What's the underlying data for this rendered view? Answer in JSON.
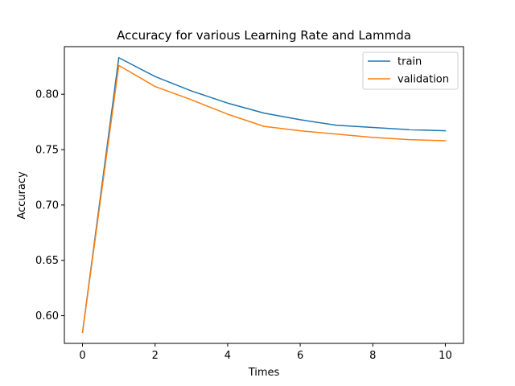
{
  "chart_data": {
    "type": "line",
    "title": "Accuracy for various Learning Rate and Lammda",
    "xlabel": "Times",
    "ylabel": "Accuracy",
    "x": [
      0,
      1,
      2,
      3,
      4,
      5,
      6,
      7,
      8,
      9,
      10
    ],
    "xlim": [
      -0.5,
      10.5
    ],
    "ylim": [
      0.575,
      0.843
    ],
    "xticks": [
      0,
      2,
      4,
      6,
      8,
      10
    ],
    "xtick_labels": [
      "0",
      "2",
      "4",
      "6",
      "8",
      "10"
    ],
    "yticks": [
      0.6,
      0.65,
      0.7,
      0.75,
      0.8
    ],
    "ytick_labels": [
      "0.60",
      "0.65",
      "0.70",
      "0.75",
      "0.80"
    ],
    "grid": false,
    "legend_position": "top-right",
    "series": [
      {
        "name": "train",
        "color": "#1f77b4",
        "values": [
          0.585,
          0.833,
          0.816,
          0.803,
          0.792,
          0.783,
          0.777,
          0.772,
          0.77,
          0.768,
          0.767
        ]
      },
      {
        "name": "validation",
        "color": "#ff7f0e",
        "values": [
          0.585,
          0.826,
          0.807,
          0.795,
          0.782,
          0.771,
          0.767,
          0.764,
          0.761,
          0.759,
          0.758
        ]
      }
    ]
  }
}
